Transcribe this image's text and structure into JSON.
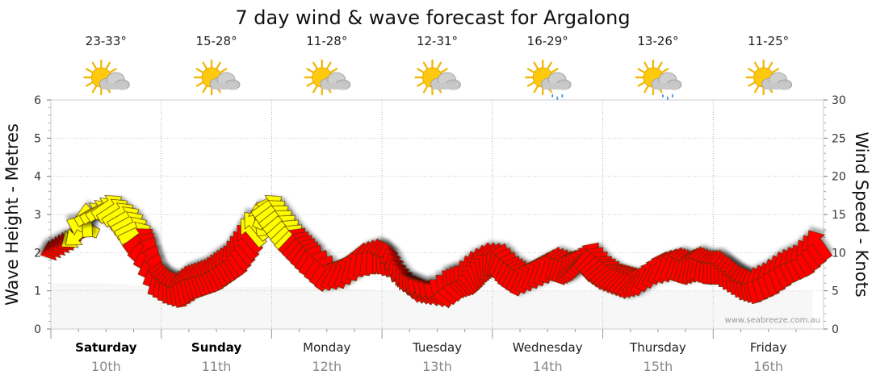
{
  "chart_data": {
    "type": "line",
    "title": "7 day wind & wave forecast for Argalong",
    "ylabel_left": "Wave Height - Metres",
    "ylabel_right": "Wind Speed - Knots",
    "ylim_left": [
      0,
      6
    ],
    "ylim_right": [
      0,
      30
    ],
    "yticks_left": [
      "0",
      "1",
      "2",
      "3",
      "4",
      "5",
      "6"
    ],
    "yticks_right": [
      "0",
      "5",
      "10",
      "15",
      "20",
      "25",
      "30"
    ],
    "days": [
      {
        "day": "Saturday",
        "date": "10th",
        "temp": "23-33°",
        "icon": "sun-cloud-icon",
        "bold": true
      },
      {
        "day": "Sunday",
        "date": "11th",
        "temp": "15-28°",
        "icon": "sun-cloud-icon",
        "bold": true
      },
      {
        "day": "Monday",
        "date": "12th",
        "temp": "11-28°",
        "icon": "sun-cloud-icon",
        "bold": false
      },
      {
        "day": "Tuesday",
        "date": "13th",
        "temp": "12-31°",
        "icon": "sun-cloud-icon",
        "bold": false
      },
      {
        "day": "Wednesday",
        "date": "14th",
        "temp": "16-29°",
        "icon": "sun-cloud-rain-icon",
        "bold": false
      },
      {
        "day": "Thursday",
        "date": "15th",
        "temp": "13-26°",
        "icon": "sun-cloud-rain-icon",
        "bold": false
      },
      {
        "day": "Friday",
        "date": "16th",
        "temp": "11-25°",
        "icon": "sun-cloud-icon",
        "bold": false
      }
    ],
    "wind_series": {
      "name": "Wind Speed (knots)",
      "color_strong": "#ff0000",
      "color_light": "#ffff00",
      "time_days": [
        0,
        0.1,
        0.2,
        0.3,
        0.45,
        0.6,
        0.7,
        0.8,
        0.9,
        1.0,
        1.1,
        1.2,
        1.3,
        1.4,
        1.5,
        1.6,
        1.7,
        1.8,
        1.9,
        2.0,
        2.1,
        2.2,
        2.3,
        2.45,
        2.6,
        2.75,
        2.9,
        3.0,
        3.1,
        3.2,
        3.3,
        3.45,
        3.6,
        3.7,
        3.8,
        3.9,
        4.0,
        4.1,
        4.2,
        4.35,
        4.5,
        4.6,
        4.7,
        4.8,
        4.9,
        5.0,
        5.1,
        5.2,
        5.3,
        5.45,
        5.6,
        5.7,
        5.8,
        5.9,
        6.0,
        6.1,
        6.2,
        6.3,
        6.45,
        6.6,
        6.75,
        6.9
      ],
      "speeds": [
        10.5,
        11.5,
        12.5,
        15,
        16,
        14.5,
        12.5,
        10,
        6.5,
        5.5,
        5,
        6,
        6.5,
        7,
        8,
        9,
        11,
        13.5,
        16,
        14,
        12,
        10.5,
        9,
        7,
        7.5,
        9,
        9.5,
        9,
        7,
        5.5,
        5,
        4.5,
        6,
        6.5,
        8,
        9,
        9,
        7.5,
        6.5,
        7.5,
        8.5,
        8,
        8.5,
        9.5,
        8,
        7,
        6.5,
        6,
        6.5,
        8,
        8.5,
        8,
        8.5,
        8,
        8,
        7,
        6,
        5.5,
        6.5,
        8,
        9,
        11
      ],
      "directions_deg": [
        160,
        150,
        140,
        330,
        325,
        330,
        335,
        300,
        285,
        270,
        260,
        255,
        250,
        245,
        240,
        235,
        230,
        230,
        325,
        320,
        315,
        310,
        300,
        305,
        290,
        280,
        270,
        260,
        240,
        230,
        220,
        215,
        225,
        230,
        250,
        270,
        290,
        300,
        295,
        290,
        285,
        290,
        300,
        310,
        320,
        320,
        315,
        310,
        300,
        295,
        290,
        285,
        280,
        275,
        270,
        265,
        260,
        255,
        250,
        245,
        240,
        235
      ]
    },
    "wave_series": {
      "name": "Wave Height (m)",
      "color": "#e0e0e0",
      "time_days": [
        0,
        0.5,
        1,
        1.5,
        2,
        2.5,
        3,
        3.5,
        4,
        4.5,
        5,
        5.5,
        6,
        6.5,
        6.9
      ],
      "values": [
        1.2,
        1.2,
        1.1,
        1.1,
        1.1,
        1.1,
        1.0,
        1.0,
        1.0,
        1.0,
        1.0,
        1.0,
        1.0,
        1.0,
        1.0
      ]
    },
    "credit": "www.seabreeze.com.au"
  }
}
